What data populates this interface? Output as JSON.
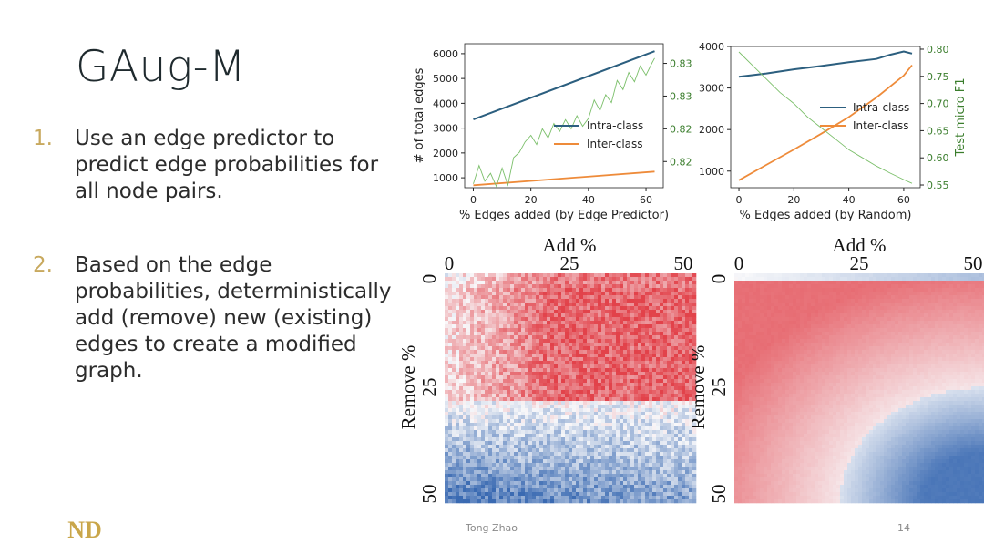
{
  "slide": {
    "title": "GAug-M",
    "bullets": [
      {
        "num": "1.",
        "text": "Use an edge predictor to\npredict edge probabilities for\nall node pairs."
      },
      {
        "num": "2.",
        "text": "Based on the edge\nprobabilities, deterministically\nadd (remove) new (existing)\nedges to create a modified\ngraph."
      }
    ],
    "footer": {
      "author": "Tong Zhao",
      "page": "14"
    },
    "logo": {
      "icon": "notre-dame-nd-monogram-icon",
      "text": "ND",
      "color": "#c9a64a"
    }
  },
  "colors": {
    "intra": "#2c5f7f",
    "inter": "#ee8b3a",
    "f1": "#7bbf6a",
    "f1_label": "#3a7d2c",
    "heat_red": "#e3434b",
    "heat_blue": "#3c6eb4"
  },
  "chart_data": [
    {
      "type": "line",
      "xlabel": "% Edges added (by Edge Predictor)",
      "ylabel": "# of total edges",
      "xticks": [
        0,
        20,
        40,
        60
      ],
      "xlim": [
        -3,
        66
      ],
      "ylim": [
        600,
        6400
      ],
      "yticks": [
        1000,
        2000,
        3000,
        4000,
        5000,
        6000
      ],
      "y2ticks": [
        "0.82",
        "0.82",
        "0.83",
        "0.83"
      ],
      "y2tick_values": [
        0.8215,
        0.824,
        0.8265,
        0.829
      ],
      "y2lim": [
        0.8195,
        0.8305
      ],
      "legend": {
        "position": "center-right",
        "entries": [
          "Intra-class",
          "Inter-class"
        ]
      },
      "series": [
        {
          "name": "Intra-class",
          "x": [
            0,
            63
          ],
          "values": [
            3350,
            6100
          ]
        },
        {
          "name": "Inter-class",
          "x": [
            0,
            63
          ],
          "values": [
            700,
            1250
          ]
        },
        {
          "axis": "right",
          "x": [
            0,
            2,
            4,
            6,
            8,
            10,
            12,
            14,
            16,
            18,
            20,
            22,
            24,
            26,
            28,
            30,
            32,
            34,
            36,
            38,
            40,
            42,
            44,
            46,
            48,
            50,
            52,
            54,
            56,
            58,
            60,
            62,
            63
          ],
          "values": [
            0.8198,
            0.8212,
            0.82,
            0.8206,
            0.8196,
            0.821,
            0.8197,
            0.8218,
            0.8222,
            0.823,
            0.8235,
            0.8228,
            0.824,
            0.8233,
            0.8244,
            0.8238,
            0.8247,
            0.824,
            0.825,
            0.8242,
            0.8248,
            0.8262,
            0.8254,
            0.8266,
            0.826,
            0.8277,
            0.827,
            0.8283,
            0.8276,
            0.8288,
            0.8281,
            0.829,
            0.8294
          ]
        }
      ]
    },
    {
      "type": "line",
      "xlabel": "% Edges added (by Random)",
      "ylabel": "",
      "y2label": "Test micro F1",
      "xticks": [
        0,
        20,
        40,
        60
      ],
      "xlim": [
        -3,
        66
      ],
      "ylim": [
        600,
        4000
      ],
      "yticks": [
        1000,
        2000,
        3000,
        4000
      ],
      "y2ticks": [
        "0.55",
        "0.60",
        "0.65",
        "0.70",
        "0.75",
        "0.80"
      ],
      "y2tick_values": [
        0.55,
        0.6,
        0.65,
        0.7,
        0.75,
        0.8
      ],
      "y2lim": [
        0.545,
        0.805
      ],
      "legend": {
        "position": "center-right",
        "entries": [
          "Intra-class",
          "Inter-class"
        ]
      },
      "series": [
        {
          "name": "Intra-class",
          "x": [
            0,
            10,
            20,
            30,
            40,
            50,
            55,
            60,
            63
          ],
          "values": [
            3270,
            3350,
            3450,
            3530,
            3620,
            3700,
            3800,
            3880,
            3830
          ]
        },
        {
          "name": "Inter-class",
          "x": [
            0,
            10,
            20,
            30,
            40,
            50,
            60,
            63
          ],
          "values": [
            780,
            1150,
            1520,
            1900,
            2300,
            2770,
            3300,
            3550
          ]
        },
        {
          "axis": "right",
          "x": [
            0,
            5,
            10,
            15,
            20,
            25,
            30,
            35,
            40,
            45,
            50,
            55,
            60,
            63
          ],
          "values": [
            0.795,
            0.77,
            0.745,
            0.72,
            0.7,
            0.675,
            0.655,
            0.635,
            0.615,
            0.6,
            0.585,
            0.572,
            0.56,
            0.553
          ]
        }
      ]
    },
    {
      "type": "heatmap",
      "title": "Add %",
      "xlabel": "Add %",
      "ylabel": "Remove %",
      "xticks": [
        "0",
        "25",
        "50"
      ],
      "yticks": [
        "0",
        "25",
        "50"
      ],
      "xlim": [
        0,
        50
      ],
      "ylim": [
        0,
        50
      ],
      "description_scale": "red = high, blue = low"
    },
    {
      "type": "heatmap",
      "title": "Add %",
      "xlabel": "Add %",
      "ylabel": "Remove %",
      "xticks": [
        "0",
        "25",
        "50"
      ],
      "yticks": [
        "0",
        "25",
        "50"
      ],
      "xlim": [
        0,
        50
      ],
      "ylim": [
        0,
        50
      ]
    }
  ]
}
